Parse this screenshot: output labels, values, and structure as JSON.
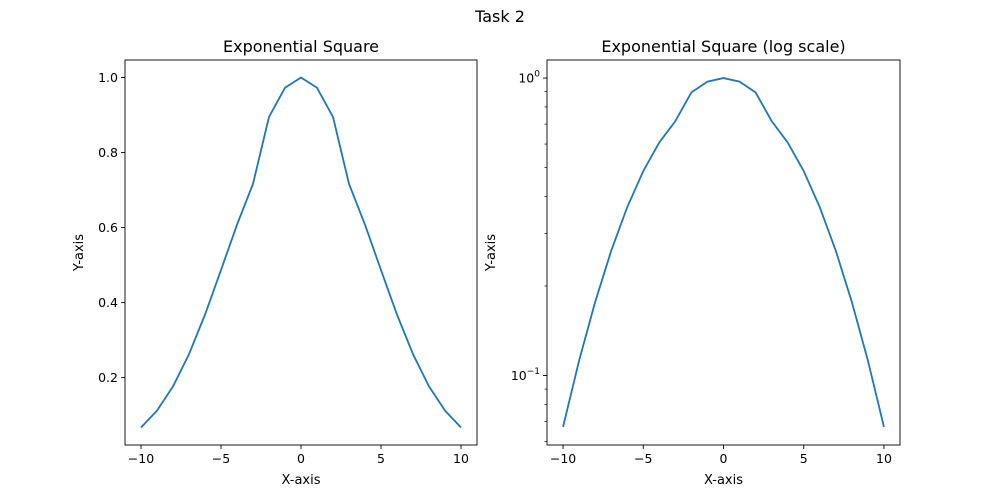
{
  "figure": {
    "title": "Task 2"
  },
  "chart_data": [
    {
      "type": "line",
      "title": "Exponential Square",
      "xlabel": "X-axis",
      "ylabel": "Y-axis",
      "yscale": "linear",
      "xlim": [
        -11,
        11
      ],
      "ylim": [
        0.0205,
        1.0466
      ],
      "xticks": [
        -10,
        -5,
        0,
        5,
        10
      ],
      "xtick_labels": [
        "−10",
        "−5",
        "0",
        "5",
        "10"
      ],
      "yticks": [
        0.2,
        0.4,
        0.6,
        0.8,
        1.0
      ],
      "ytick_labels": [
        "0.2",
        "0.4",
        "0.6",
        "0.8",
        "1.0"
      ],
      "grid": false,
      "series": [
        {
          "color": "#1f77b4",
          "x": [
            -10,
            -9,
            -8,
            -7,
            -6,
            -5,
            -4,
            -3,
            -2,
            -1,
            0,
            1,
            2,
            3,
            4,
            5,
            6,
            7,
            8,
            9,
            10
          ],
          "y": [
            0.0672,
            0.1122,
            0.1766,
            0.2625,
            0.3679,
            0.4868,
            0.6077,
            0.7165,
            0.8948,
            0.9726,
            1.0,
            0.9726,
            0.8948,
            0.7165,
            0.6077,
            0.4868,
            0.3679,
            0.2625,
            0.1766,
            0.1122,
            0.0672
          ]
        }
      ]
    },
    {
      "type": "line",
      "title": "Exponential Square (log scale)",
      "xlabel": "X-axis",
      "ylabel": "Y-axis",
      "yscale": "log",
      "xlim": [
        -11,
        11
      ],
      "ylim": [
        0.0584,
        1.15
      ],
      "xticks": [
        -10,
        -5,
        0,
        5,
        10
      ],
      "xtick_labels": [
        "−10",
        "−5",
        "0",
        "5",
        "10"
      ],
      "yticks_major": [
        0.1,
        1
      ],
      "ytick_labels": [
        {
          "base": "10",
          "exp": "−1"
        },
        {
          "base": "10",
          "exp": "0"
        }
      ],
      "yticks_minor": [
        0.06,
        0.07,
        0.08,
        0.09,
        0.2,
        0.3,
        0.4,
        0.5,
        0.6,
        0.7,
        0.8,
        0.9
      ],
      "grid": false,
      "series": [
        {
          "color": "#1f77b4",
          "x": [
            -10,
            -9,
            -8,
            -7,
            -6,
            -5,
            -4,
            -3,
            -2,
            -1,
            0,
            1,
            2,
            3,
            4,
            5,
            6,
            7,
            8,
            9,
            10
          ],
          "y": [
            0.0672,
            0.1122,
            0.1766,
            0.2625,
            0.3679,
            0.4868,
            0.6077,
            0.7165,
            0.8948,
            0.9726,
            1.0,
            0.9726,
            0.8948,
            0.7165,
            0.6077,
            0.4868,
            0.3679,
            0.2625,
            0.1766,
            0.1122,
            0.0672
          ]
        }
      ]
    }
  ]
}
